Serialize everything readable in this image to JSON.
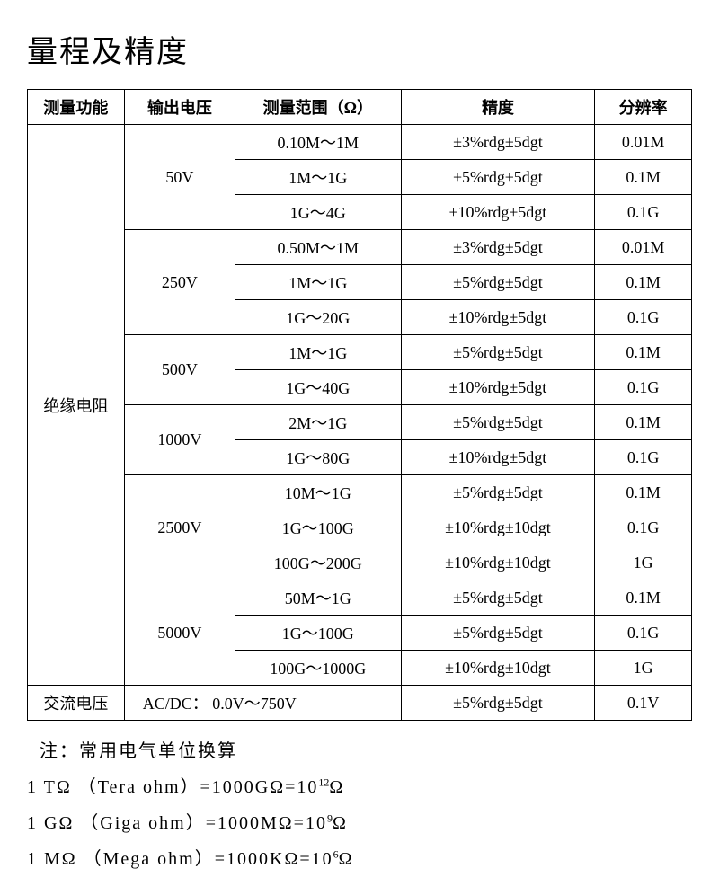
{
  "title": "量程及精度",
  "headers": {
    "func": "测量功能",
    "voltage": "输出电压",
    "range": "测量范围（Ω）",
    "accuracy": "精度",
    "resolution": "分辨率"
  },
  "func_label": "绝缘电阻",
  "voltages": [
    "50V",
    "250V",
    "500V",
    "1000V",
    "2500V",
    "5000V"
  ],
  "rows": [
    {
      "range": "0.10M～1M",
      "acc": "±3%rdg±5dgt",
      "res": "0.01M"
    },
    {
      "range": "1M～1G",
      "acc": "±5%rdg±5dgt",
      "res": "0.1M"
    },
    {
      "range": "1G～4G",
      "acc": "±10%rdg±5dgt",
      "res": "0.1G"
    },
    {
      "range": "0.50M～1M",
      "acc": "±3%rdg±5dgt",
      "res": "0.01M"
    },
    {
      "range": "1M～1G",
      "acc": "±5%rdg±5dgt",
      "res": "0.1M"
    },
    {
      "range": "1G～20G",
      "acc": "±10%rdg±5dgt",
      "res": "0.1G"
    },
    {
      "range": "1M～1G",
      "acc": "±5%rdg±5dgt",
      "res": "0.1M"
    },
    {
      "range": "1G～40G",
      "acc": "±10%rdg±5dgt",
      "res": "0.1G"
    },
    {
      "range": "2M～1G",
      "acc": "±5%rdg±5dgt",
      "res": "0.1M"
    },
    {
      "range": "1G～80G",
      "acc": "±10%rdg±5dgt",
      "res": "0.1G"
    },
    {
      "range": "10M～1G",
      "acc": "±5%rdg±5dgt",
      "res": "0.1M"
    },
    {
      "range": "1G～100G",
      "acc": "±10%rdg±10dgt",
      "res": "0.1G"
    },
    {
      "range": "100G～200G",
      "acc": "±10%rdg±10dgt",
      "res": "1G"
    },
    {
      "range": "50M～1G",
      "acc": "±5%rdg±5dgt",
      "res": "0.1M"
    },
    {
      "range": "1G～100G",
      "acc": "±5%rdg±5dgt",
      "res": "0.1G"
    },
    {
      "range": "100G～1000G",
      "acc": "±10%rdg±10dgt",
      "res": "1G"
    }
  ],
  "acdc": {
    "func": "交流电压",
    "label": "AC/DC： 0.0V～750V",
    "acc": "±5%rdg±5dgt",
    "res": "0.1V"
  },
  "notes": {
    "heading": "注：常用电气单位换算",
    "line1a": "1 TΩ （Tera ohm）=1000GΩ=10",
    "line1b": "Ω",
    "exp1": "12",
    "line2a": "1 GΩ （Giga ohm）=1000MΩ=10",
    "line2b": "Ω",
    "exp2": "9",
    "line3a": "1 MΩ （Mega ohm）=1000KΩ=10",
    "line3b": "Ω",
    "exp3": "6"
  }
}
